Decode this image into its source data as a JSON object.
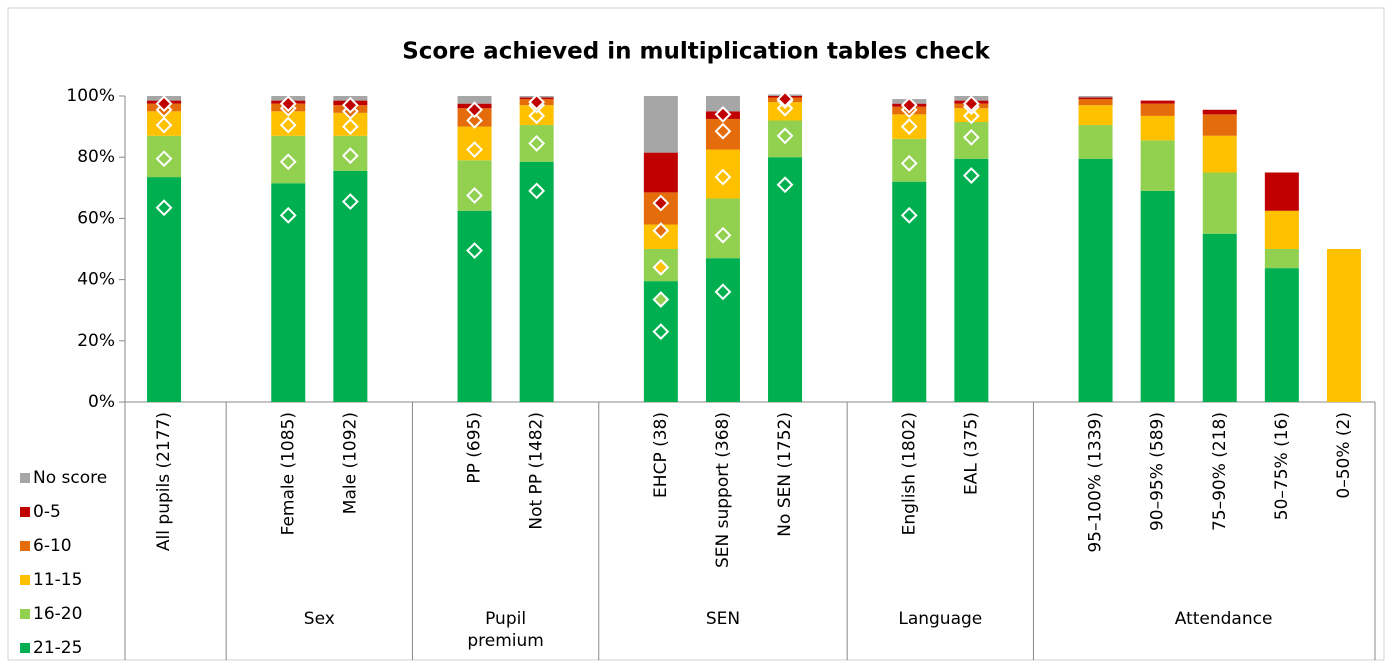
{
  "chart_data": {
    "type": "stacked_bar",
    "title": "Score achieved in multiplication tables check",
    "categories": [
      "All pupils (2177)",
      null,
      "Female (1085)",
      "Male (1092)",
      null,
      "PP (695)",
      "Not PP (1482)",
      null,
      "EHCP (38)",
      "SEN support (368)",
      "No SEN (1752)",
      null,
      "English (1802)",
      "EAL (375)",
      null,
      "95–100% (1339)",
      "90–95% (589)",
      "75–90% (218)",
      "50–75% (16)",
      "0–50% (2)"
    ],
    "group_labels": [
      "Sex",
      "Pupil premium",
      "SEN",
      "Language",
      "Attendance"
    ],
    "ylim": [
      0,
      100
    ],
    "yticks": [
      {
        "value": 0,
        "label": "0%"
      },
      {
        "value": 20,
        "label": "20%"
      },
      {
        "value": 40,
        "label": "40%"
      },
      {
        "value": 60,
        "label": "60%"
      },
      {
        "value": 80,
        "label": "80%"
      },
      {
        "value": 100,
        "label": "100%"
      }
    ],
    "series": [
      {
        "name": "21-25",
        "color": "#00b050",
        "values": [
          73.5,
          null,
          71.5,
          75.5,
          null,
          62.5,
          78.5,
          null,
          39.5,
          47,
          80,
          null,
          72,
          79.5,
          null,
          79.5,
          69,
          55,
          43.75,
          0
        ],
        "comparison": [
          63.5,
          null,
          61,
          65.5,
          null,
          49.5,
          69,
          null,
          23,
          36,
          71,
          null,
          61,
          74,
          null,
          null,
          null,
          null,
          null,
          null
        ]
      },
      {
        "name": "16-20",
        "color": "#92d050",
        "values": [
          13.5,
          null,
          15.5,
          11.5,
          null,
          16.5,
          12,
          null,
          10.5,
          19.5,
          12,
          null,
          14,
          12,
          null,
          11,
          16.5,
          20,
          6.25,
          0
        ],
        "comparison": [
          16,
          null,
          17.5,
          15,
          null,
          18,
          15.5,
          null,
          10.5,
          18.5,
          16,
          null,
          17,
          12.5,
          null,
          null,
          null,
          null,
          null,
          null
        ]
      },
      {
        "name": "11-15",
        "color": "#ffc000",
        "values": [
          8,
          null,
          8,
          7.5,
          null,
          11,
          6.5,
          null,
          8,
          16,
          6,
          null,
          8,
          4.5,
          null,
          6.5,
          8,
          12,
          12.5,
          50
        ],
        "comparison": [
          11,
          null,
          12,
          9.5,
          null,
          15,
          9,
          null,
          10.5,
          19,
          9,
          null,
          12,
          7,
          null,
          null,
          null,
          null,
          null,
          null
        ]
      },
      {
        "name": "6-10",
        "color": "#e46c0a",
        "values": [
          2.5,
          null,
          2.5,
          2.5,
          null,
          6,
          2,
          null,
          10.5,
          10,
          1.5,
          null,
          2.5,
          1.5,
          null,
          2,
          4,
          7,
          0,
          0
        ],
        "comparison": [
          5,
          null,
          5.5,
          5,
          null,
          9.5,
          3.5,
          null,
          12,
          15,
          2.5,
          null,
          5.5,
          3,
          null,
          null,
          null,
          null,
          null,
          null
        ]
      },
      {
        "name": "0-5",
        "color": "#c00000",
        "values": [
          1,
          null,
          1,
          1.5,
          null,
          1.5,
          0.5,
          null,
          13,
          2.5,
          0.5,
          null,
          1,
          1,
          null,
          0.5,
          1,
          1.5,
          12.5,
          0
        ],
        "comparison": [
          2,
          null,
          1.5,
          2,
          null,
          3.5,
          1,
          null,
          9,
          5.5,
          0.5,
          null,
          1.5,
          1,
          null,
          null,
          null,
          null,
          null,
          null
        ]
      },
      {
        "name": "No score",
        "color": "#a6a6a6",
        "values": [
          1.5,
          null,
          1.5,
          1.5,
          null,
          2.5,
          0.5,
          null,
          18.5,
          5,
          0.5,
          null,
          1.5,
          1.5,
          null,
          0.5,
          0,
          0,
          0,
          0
        ]
      }
    ]
  }
}
